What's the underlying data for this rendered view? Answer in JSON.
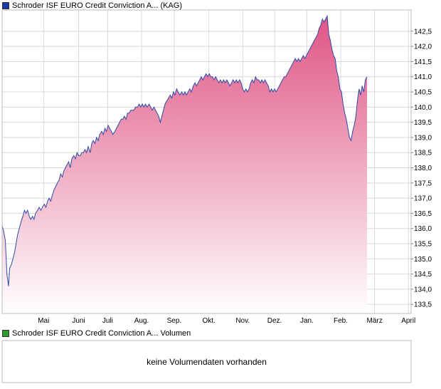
{
  "price_panel": {
    "legend_label": "Schroder ISF EURO Credit Conviction A... (KAG)",
    "legend_color": "#1a3aa0"
  },
  "volume_panel": {
    "legend_label": "Schroder ISF EURO Credit Conviction A... Volumen",
    "legend_color": "#2f9c2f",
    "message": "keine Volumendaten vorhanden"
  },
  "colors": {
    "line": "#2d4aa8",
    "fill_top": "#e05585",
    "fill_bottom": "#ffffff",
    "grid": "#d8d8d8",
    "frame": "#bbbbbb"
  },
  "chart_data": {
    "type": "area",
    "title": "",
    "xlabel": "",
    "ylabel": "",
    "ylim": [
      133.2,
      143.2
    ],
    "grid": true,
    "y_axis_side": "right",
    "y_ticks": [
      "133,5",
      "134,0",
      "134,5",
      "135,0",
      "135,5",
      "136,0",
      "136,5",
      "137,0",
      "137,5",
      "138,0",
      "138,5",
      "139,0",
      "139,5",
      "140,0",
      "140,5",
      "141,0",
      "141,5",
      "142,0",
      "142,5"
    ],
    "y_tick_values": [
      133.5,
      134.0,
      134.5,
      135.0,
      135.5,
      136.0,
      136.5,
      137.0,
      137.5,
      138.0,
      138.5,
      139.0,
      139.5,
      140.0,
      140.5,
      141.0,
      141.5,
      142.0,
      142.5
    ],
    "x_ticks": [
      {
        "label": "Mai",
        "t": 0.104
      },
      {
        "label": "Juni",
        "t": 0.192
      },
      {
        "label": "Juli",
        "t": 0.265
      },
      {
        "label": "Aug.",
        "t": 0.35
      },
      {
        "label": "Sep.",
        "t": 0.432
      },
      {
        "label": "Okt.",
        "t": 0.519
      },
      {
        "label": "Nov.",
        "t": 0.604
      },
      {
        "label": "Dez.",
        "t": 0.684
      },
      {
        "label": "Jan.",
        "t": 0.765
      },
      {
        "label": "Feb.",
        "t": 0.85
      },
      {
        "label": "März",
        "t": 0.935
      },
      {
        "label": "April",
        "t": 1.02
      }
    ],
    "series": [
      {
        "values": [
          [
            0.0,
            136.1
          ],
          [
            0.004,
            135.9
          ],
          [
            0.008,
            135.6
          ],
          [
            0.012,
            134.5
          ],
          [
            0.016,
            134.1
          ],
          [
            0.019,
            134.7
          ],
          [
            0.023,
            134.8
          ],
          [
            0.027,
            135.0
          ],
          [
            0.031,
            135.2
          ],
          [
            0.035,
            135.5
          ],
          [
            0.039,
            135.8
          ],
          [
            0.043,
            136.0
          ],
          [
            0.047,
            136.2
          ],
          [
            0.052,
            136.4
          ],
          [
            0.056,
            136.6
          ],
          [
            0.06,
            136.5
          ],
          [
            0.064,
            136.6
          ],
          [
            0.068,
            136.4
          ],
          [
            0.072,
            136.3
          ],
          [
            0.076,
            136.4
          ],
          [
            0.08,
            136.3
          ],
          [
            0.084,
            136.5
          ],
          [
            0.089,
            136.6
          ],
          [
            0.093,
            136.7
          ],
          [
            0.097,
            136.6
          ],
          [
            0.101,
            136.7
          ],
          [
            0.106,
            136.8
          ],
          [
            0.11,
            136.7
          ],
          [
            0.114,
            136.9
          ],
          [
            0.118,
            137.0
          ],
          [
            0.122,
            136.9
          ],
          [
            0.126,
            137.1
          ],
          [
            0.131,
            137.3
          ],
          [
            0.135,
            137.4
          ],
          [
            0.139,
            137.5
          ],
          [
            0.143,
            137.6
          ],
          [
            0.147,
            137.8
          ],
          [
            0.151,
            137.7
          ],
          [
            0.155,
            137.9
          ],
          [
            0.159,
            138.0
          ],
          [
            0.163,
            138.1
          ],
          [
            0.167,
            138.2
          ],
          [
            0.171,
            138.0
          ],
          [
            0.175,
            138.3
          ],
          [
            0.18,
            138.4
          ],
          [
            0.184,
            138.3
          ],
          [
            0.188,
            138.5
          ],
          [
            0.192,
            138.4
          ],
          [
            0.196,
            138.4
          ],
          [
            0.2,
            138.5
          ],
          [
            0.204,
            138.5
          ],
          [
            0.208,
            138.6
          ],
          [
            0.212,
            138.5
          ],
          [
            0.216,
            138.7
          ],
          [
            0.221,
            138.5
          ],
          [
            0.225,
            138.8
          ],
          [
            0.229,
            138.9
          ],
          [
            0.233,
            138.8
          ],
          [
            0.237,
            139.0
          ],
          [
            0.241,
            138.9
          ],
          [
            0.245,
            139.1
          ],
          [
            0.25,
            139.2
          ],
          [
            0.254,
            139.1
          ],
          [
            0.258,
            139.3
          ],
          [
            0.262,
            139.2
          ],
          [
            0.266,
            139.4
          ],
          [
            0.27,
            139.3
          ],
          [
            0.274,
            139.2
          ],
          [
            0.278,
            139.1
          ],
          [
            0.283,
            139.2
          ],
          [
            0.287,
            139.3
          ],
          [
            0.291,
            139.4
          ],
          [
            0.295,
            139.5
          ],
          [
            0.299,
            139.6
          ],
          [
            0.303,
            139.6
          ],
          [
            0.307,
            139.7
          ],
          [
            0.311,
            139.6
          ],
          [
            0.315,
            139.8
          ],
          [
            0.319,
            139.8
          ],
          [
            0.323,
            139.9
          ],
          [
            0.327,
            139.9
          ],
          [
            0.331,
            139.9
          ],
          [
            0.335,
            140.0
          ],
          [
            0.34,
            140.0
          ],
          [
            0.344,
            140.1
          ],
          [
            0.348,
            140.0
          ],
          [
            0.352,
            140.1
          ],
          [
            0.356,
            140.0
          ],
          [
            0.36,
            140.1
          ],
          [
            0.364,
            140.0
          ],
          [
            0.369,
            140.1
          ],
          [
            0.373,
            140.0
          ],
          [
            0.377,
            139.9
          ],
          [
            0.381,
            140.0
          ],
          [
            0.385,
            139.9
          ],
          [
            0.389,
            139.8
          ],
          [
            0.393,
            139.7
          ],
          [
            0.397,
            139.5
          ],
          [
            0.401,
            139.7
          ],
          [
            0.405,
            139.9
          ],
          [
            0.409,
            140.1
          ],
          [
            0.413,
            140.2
          ],
          [
            0.418,
            140.3
          ],
          [
            0.422,
            140.4
          ],
          [
            0.426,
            140.3
          ],
          [
            0.43,
            140.5
          ],
          [
            0.434,
            140.4
          ],
          [
            0.438,
            140.6
          ],
          [
            0.442,
            140.5
          ],
          [
            0.446,
            140.4
          ],
          [
            0.451,
            140.5
          ],
          [
            0.455,
            140.4
          ],
          [
            0.459,
            140.5
          ],
          [
            0.463,
            140.4
          ],
          [
            0.467,
            140.5
          ],
          [
            0.471,
            140.6
          ],
          [
            0.475,
            140.5
          ],
          [
            0.48,
            140.7
          ],
          [
            0.484,
            140.8
          ],
          [
            0.488,
            140.7
          ],
          [
            0.492,
            140.8
          ],
          [
            0.496,
            140.9
          ],
          [
            0.5,
            141.0
          ],
          [
            0.504,
            140.9
          ],
          [
            0.508,
            141.0
          ],
          [
            0.512,
            141.1
          ],
          [
            0.516,
            141.0
          ],
          [
            0.52,
            141.1
          ],
          [
            0.524,
            141.0
          ],
          [
            0.528,
            141.0
          ],
          [
            0.532,
            140.9
          ],
          [
            0.536,
            141.0
          ],
          [
            0.54,
            140.9
          ],
          [
            0.544,
            140.8
          ],
          [
            0.548,
            140.9
          ],
          [
            0.552,
            140.8
          ],
          [
            0.556,
            140.9
          ],
          [
            0.56,
            140.8
          ],
          [
            0.564,
            140.9
          ],
          [
            0.568,
            140.8
          ],
          [
            0.572,
            140.7
          ],
          [
            0.576,
            140.8
          ],
          [
            0.58,
            140.9
          ],
          [
            0.584,
            140.8
          ],
          [
            0.588,
            140.9
          ],
          [
            0.592,
            140.8
          ],
          [
            0.596,
            140.9
          ],
          [
            0.6,
            140.8
          ],
          [
            0.604,
            140.6
          ],
          [
            0.608,
            140.5
          ],
          [
            0.612,
            140.6
          ],
          [
            0.616,
            140.5
          ],
          [
            0.62,
            140.6
          ],
          [
            0.624,
            140.8
          ],
          [
            0.628,
            140.9
          ],
          [
            0.632,
            140.8
          ],
          [
            0.636,
            141.0
          ],
          [
            0.64,
            140.9
          ],
          [
            0.644,
            140.9
          ],
          [
            0.648,
            140.8
          ],
          [
            0.652,
            140.9
          ],
          [
            0.656,
            140.8
          ],
          [
            0.66,
            140.9
          ],
          [
            0.664,
            140.8
          ],
          [
            0.668,
            140.7
          ],
          [
            0.672,
            140.5
          ],
          [
            0.676,
            140.6
          ],
          [
            0.68,
            140.5
          ],
          [
            0.684,
            140.6
          ],
          [
            0.688,
            140.5
          ],
          [
            0.692,
            140.6
          ],
          [
            0.696,
            140.7
          ],
          [
            0.7,
            140.8
          ],
          [
            0.704,
            140.9
          ],
          [
            0.708,
            141.0
          ],
          [
            0.712,
            141.0
          ],
          [
            0.716,
            141.1
          ],
          [
            0.72,
            141.2
          ],
          [
            0.724,
            141.3
          ],
          [
            0.728,
            141.4
          ],
          [
            0.732,
            141.5
          ],
          [
            0.736,
            141.6
          ],
          [
            0.74,
            141.5
          ],
          [
            0.744,
            141.6
          ],
          [
            0.748,
            141.5
          ],
          [
            0.752,
            141.6
          ],
          [
            0.756,
            141.7
          ],
          [
            0.76,
            141.6
          ],
          [
            0.764,
            141.7
          ],
          [
            0.768,
            141.8
          ],
          [
            0.772,
            141.9
          ],
          [
            0.776,
            142.0
          ],
          [
            0.78,
            142.1
          ],
          [
            0.784,
            142.2
          ],
          [
            0.788,
            142.3
          ],
          [
            0.792,
            142.4
          ],
          [
            0.796,
            142.6
          ],
          [
            0.8,
            142.7
          ],
          [
            0.804,
            142.9
          ],
          [
            0.808,
            142.8
          ],
          [
            0.812,
            142.9
          ],
          [
            0.816,
            143.0
          ],
          [
            0.82,
            142.4
          ],
          [
            0.824,
            142.2
          ],
          [
            0.828,
            141.9
          ],
          [
            0.832,
            141.7
          ],
          [
            0.836,
            141.6
          ],
          [
            0.84,
            141.2
          ],
          [
            0.844,
            141.0
          ],
          [
            0.848,
            140.6
          ],
          [
            0.852,
            140.5
          ],
          [
            0.856,
            140.1
          ],
          [
            0.86,
            139.8
          ],
          [
            0.864,
            139.6
          ],
          [
            0.868,
            139.3
          ],
          [
            0.872,
            139.0
          ],
          [
            0.876,
            138.9
          ],
          [
            0.88,
            139.2
          ],
          [
            0.884,
            139.4
          ],
          [
            0.888,
            139.7
          ],
          [
            0.892,
            140.2
          ],
          [
            0.896,
            140.6
          ],
          [
            0.9,
            140.4
          ],
          [
            0.904,
            140.7
          ],
          [
            0.908,
            140.5
          ],
          [
            0.912,
            140.9
          ],
          [
            0.916,
            141.0
          ]
        ]
      }
    ]
  }
}
